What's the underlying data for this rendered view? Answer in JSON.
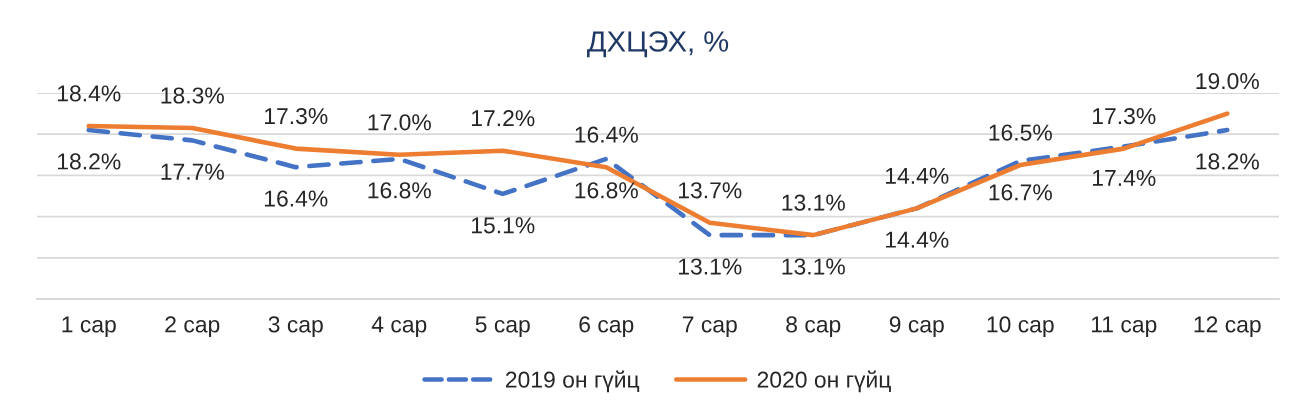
{
  "chart_data": {
    "type": "line",
    "title": "ДХЦЭХ, %",
    "categories": [
      "1 сар",
      "2 сар",
      "3 сар",
      "4 сар",
      "5 сар",
      "6 сар",
      "7 сар",
      "8 сар",
      "9 сар",
      "10 сар",
      "11 сар",
      "12 сар"
    ],
    "series": [
      {
        "name": "2019 он гүйц",
        "color": "#4472c4",
        "line_style": "dashed",
        "values": [
          18.2,
          17.7,
          16.4,
          16.8,
          15.1,
          16.8,
          13.1,
          13.1,
          14.4,
          16.7,
          17.4,
          18.2
        ],
        "value_labels": [
          "18.2%",
          "17.7%",
          "16.4%",
          "16.8%",
          "15.1%",
          "16.8%",
          "13.1%",
          "13.1%",
          "14.4%",
          "16.7%",
          "17.4%",
          "18.2%"
        ]
      },
      {
        "name": "2020 он гүйц",
        "color": "#ed7d31",
        "line_style": "solid",
        "values": [
          18.4,
          18.3,
          17.3,
          17.0,
          17.2,
          16.4,
          13.7,
          13.1,
          14.4,
          16.5,
          17.3,
          19.0
        ],
        "value_labels": [
          "18.4%",
          "18.3%",
          "17.3%",
          "17.0%",
          "17.2%",
          "16.4%",
          "13.7%",
          "13.1%",
          "14.4%",
          "16.5%",
          "17.3%",
          "19.0%"
        ]
      }
    ],
    "ylim": [
      10,
      20
    ],
    "yticks": [
      {
        "value": 10,
        "label": null
      },
      {
        "value": 12,
        "label": null
      },
      {
        "value": 14,
        "label": null
      },
      {
        "value": 16,
        "label": null
      },
      {
        "value": 18,
        "label": null
      },
      {
        "value": 20,
        "label": null
      }
    ],
    "grid": "y",
    "legend": "bottom",
    "tick_labels": "x"
  }
}
